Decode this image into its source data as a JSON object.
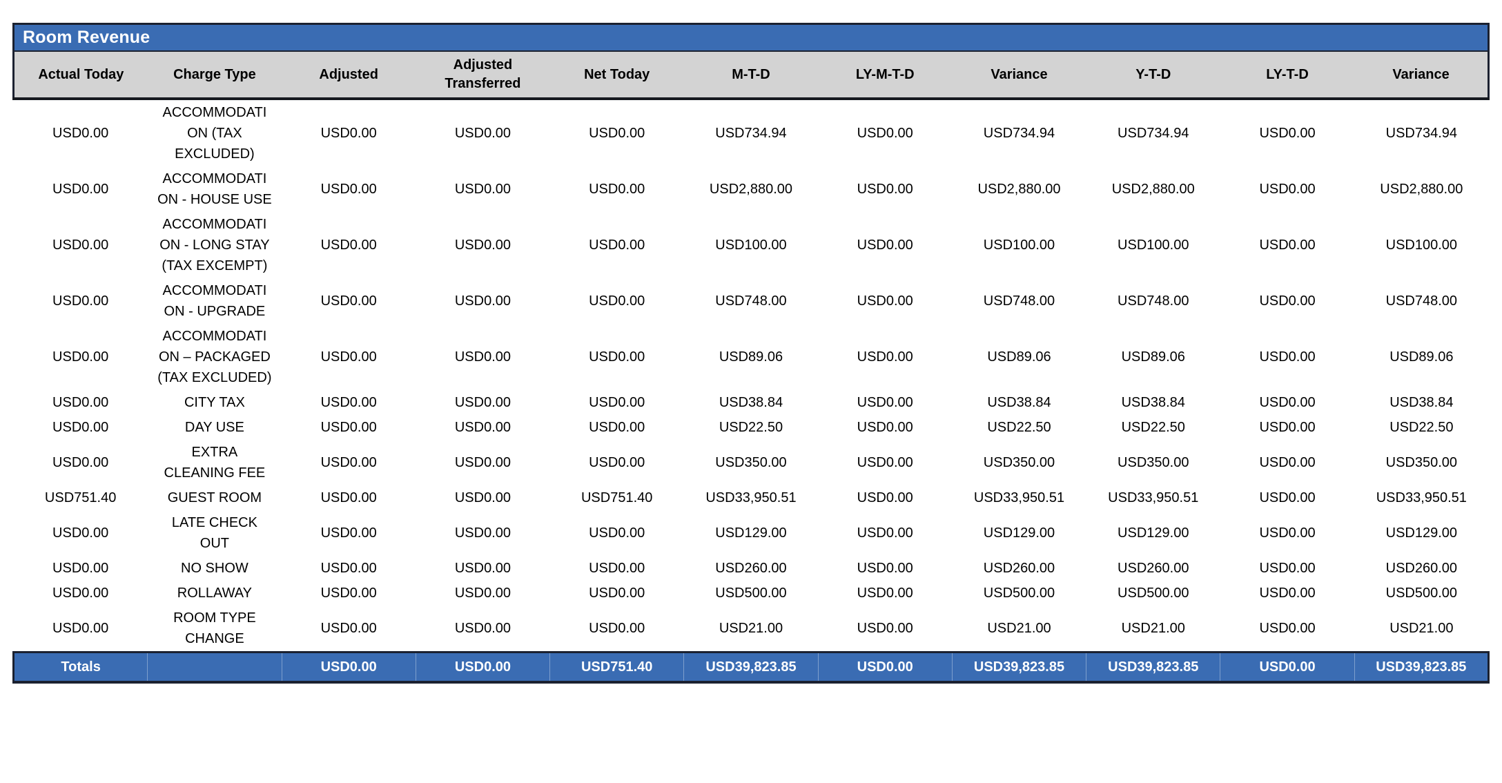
{
  "report": {
    "title": "Room Revenue",
    "colors": {
      "header_blue": "#3A6CB3",
      "header_gray": "#D3D3D3",
      "border_dark": "#1B2130",
      "body_text": "#000000",
      "title_text": "#FFFFFF"
    },
    "columns": [
      "Actual Today",
      "Charge Type",
      "Adjusted",
      "Adjusted Transferred",
      "Net Today",
      "M-T-D",
      "LY-M-T-D",
      "Variance",
      "Y-T-D",
      "LY-T-D",
      "Variance"
    ],
    "rows": [
      [
        "USD0.00",
        "ACCOMMODATION (TAX EXCLUDED)",
        "USD0.00",
        "USD0.00",
        "USD0.00",
        "USD734.94",
        "USD0.00",
        "USD734.94",
        "USD734.94",
        "USD0.00",
        "USD734.94"
      ],
      [
        "USD0.00",
        "ACCOMMODATION - HOUSE USE",
        "USD0.00",
        "USD0.00",
        "USD0.00",
        "USD2,880.00",
        "USD0.00",
        "USD2,880.00",
        "USD2,880.00",
        "USD0.00",
        "USD2,880.00"
      ],
      [
        "USD0.00",
        "ACCOMMODATION - LONG STAY (TAX EXCEMPT)",
        "USD0.00",
        "USD0.00",
        "USD0.00",
        "USD100.00",
        "USD0.00",
        "USD100.00",
        "USD100.00",
        "USD0.00",
        "USD100.00"
      ],
      [
        "USD0.00",
        "ACCOMMODATION - UPGRADE",
        "USD0.00",
        "USD0.00",
        "USD0.00",
        "USD748.00",
        "USD0.00",
        "USD748.00",
        "USD748.00",
        "USD0.00",
        "USD748.00"
      ],
      [
        "USD0.00",
        "ACCOMMODATION – PACKAGED (TAX EXCLUDED)",
        "USD0.00",
        "USD0.00",
        "USD0.00",
        "USD89.06",
        "USD0.00",
        "USD89.06",
        "USD89.06",
        "USD0.00",
        "USD89.06"
      ],
      [
        "USD0.00",
        "CITY TAX",
        "USD0.00",
        "USD0.00",
        "USD0.00",
        "USD38.84",
        "USD0.00",
        "USD38.84",
        "USD38.84",
        "USD0.00",
        "USD38.84"
      ],
      [
        "USD0.00",
        "DAY USE",
        "USD0.00",
        "USD0.00",
        "USD0.00",
        "USD22.50",
        "USD0.00",
        "USD22.50",
        "USD22.50",
        "USD0.00",
        "USD22.50"
      ],
      [
        "USD0.00",
        "EXTRA CLEANING FEE",
        "USD0.00",
        "USD0.00",
        "USD0.00",
        "USD350.00",
        "USD0.00",
        "USD350.00",
        "USD350.00",
        "USD0.00",
        "USD350.00"
      ],
      [
        "USD751.40",
        "GUEST ROOM",
        "USD0.00",
        "USD0.00",
        "USD751.40",
        "USD33,950.51",
        "USD0.00",
        "USD33,950.51",
        "USD33,950.51",
        "USD0.00",
        "USD33,950.51"
      ],
      [
        "USD0.00",
        "LATE CHECK OUT",
        "USD0.00",
        "USD0.00",
        "USD0.00",
        "USD129.00",
        "USD0.00",
        "USD129.00",
        "USD129.00",
        "USD0.00",
        "USD129.00"
      ],
      [
        "USD0.00",
        "NO SHOW",
        "USD0.00",
        "USD0.00",
        "USD0.00",
        "USD260.00",
        "USD0.00",
        "USD260.00",
        "USD260.00",
        "USD0.00",
        "USD260.00"
      ],
      [
        "USD0.00",
        "ROLLAWAY",
        "USD0.00",
        "USD0.00",
        "USD0.00",
        "USD500.00",
        "USD0.00",
        "USD500.00",
        "USD500.00",
        "USD0.00",
        "USD500.00"
      ],
      [
        "USD0.00",
        "ROOM TYPE CHANGE",
        "USD0.00",
        "USD0.00",
        "USD0.00",
        "USD21.00",
        "USD0.00",
        "USD21.00",
        "USD21.00",
        "USD0.00",
        "USD21.00"
      ]
    ],
    "totals": {
      "cells": [
        "Totals",
        "",
        "USD0.00",
        "USD0.00",
        "USD751.40",
        "USD39,823.85",
        "USD0.00",
        "USD39,823.85",
        "USD39,823.85",
        "USD0.00",
        "USD39,823.85"
      ]
    }
  }
}
